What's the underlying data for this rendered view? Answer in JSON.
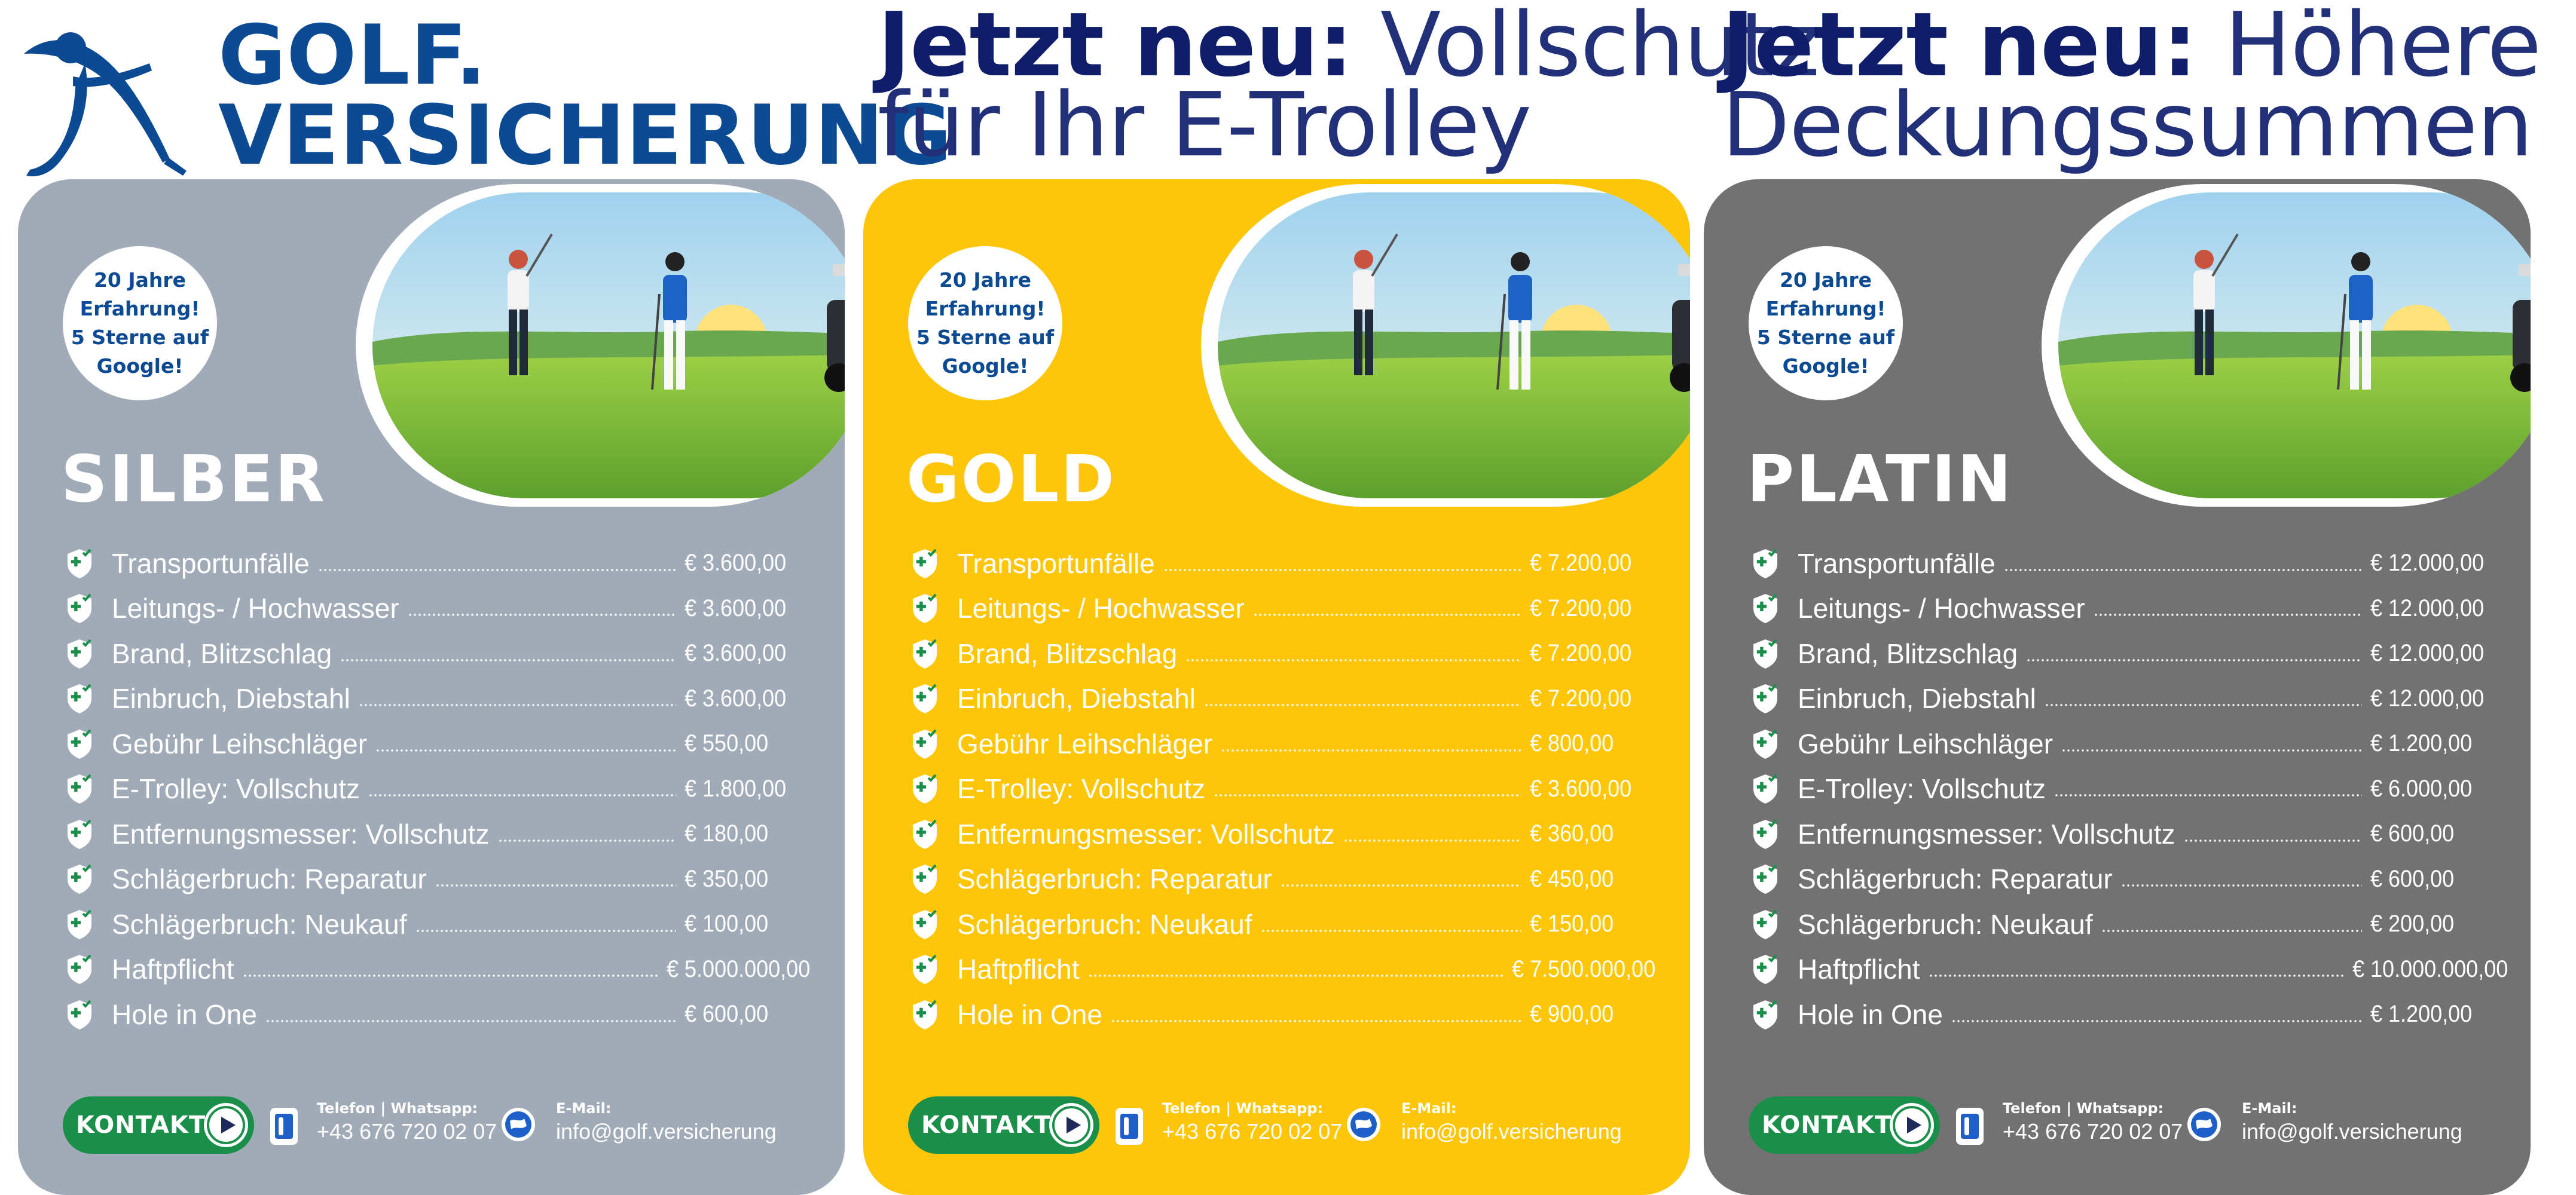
{
  "brand": {
    "line1": "GOLF.",
    "line2": "VERSICHERUNG",
    "color": "#0d4a94"
  },
  "headlines": [
    {
      "bold": "Jetzt neu:",
      "thin1": "Vollschutz",
      "thin2": "für Ihr E-Trolley"
    },
    {
      "bold": "Jetzt neu:",
      "thin1": "Höhere",
      "thin2": "Deckungssummen"
    }
  ],
  "badge": {
    "line1": "20 Jahre",
    "line2": "Erfahrung!",
    "line3": "5 Sterne auf",
    "line4": "Google!"
  },
  "coverage_labels": [
    "Transportunfälle",
    "Leitungs- / Hochwasser",
    "Brand, Blitzschlag",
    "Einbruch, Diebstahl",
    "Gebühr Leihschläger",
    "E-Trolley: Vollschutz",
    "Entfernungsmesser: Vollschutz",
    "Schlägerbruch: Reparatur",
    "Schlägerbruch: Neukauf",
    "Haftpflicht",
    "Hole in One"
  ],
  "plans": [
    {
      "name": "SILBER",
      "color": "#a1abb8",
      "values": [
        "€ 3.600,00",
        "€ 3.600,00",
        "€ 3.600,00",
        "€ 3.600,00",
        "€ 550,00",
        "€ 1.800,00",
        "€ 180,00",
        "€ 350,00",
        "€ 100,00",
        "€ 5.000.000,00",
        "€ 600,00"
      ]
    },
    {
      "name": "GOLD",
      "color": "#ffc609",
      "values": [
        "€ 7.200,00",
        "€ 7.200,00",
        "€ 7.200,00",
        "€ 7.200,00",
        "€ 800,00",
        "€ 3.600,00",
        "€ 360,00",
        "€ 450,00",
        "€ 150,00",
        "€ 7.500.000,00",
        "€ 900,00"
      ]
    },
    {
      "name": "PLATIN",
      "color": "#727272",
      "values": [
        "€ 12.000,00",
        "€ 12.000,00",
        "€ 12.000,00",
        "€ 12.000,00",
        "€ 1.200,00",
        "€ 6.000,00",
        "€ 600,00",
        "€ 600,00",
        "€ 200,00",
        "€ 10.000.000,00",
        "€ 1.200,00"
      ]
    }
  ],
  "footer": {
    "contact_label": "KONTAKT",
    "phone_caption": "Telefon | Whatsapp:",
    "phone": "+43 676 720 02 07",
    "email_caption": "E-Mail:",
    "email": "info@golf.versicherung"
  },
  "icons": [
    "golfer-logo-icon",
    "shield-check-icon",
    "play-arrow-icon",
    "phone-icon",
    "mail-globe-icon"
  ],
  "colors": {
    "contact_button": "#1a8f4a",
    "headline": "#0f1d6b"
  }
}
